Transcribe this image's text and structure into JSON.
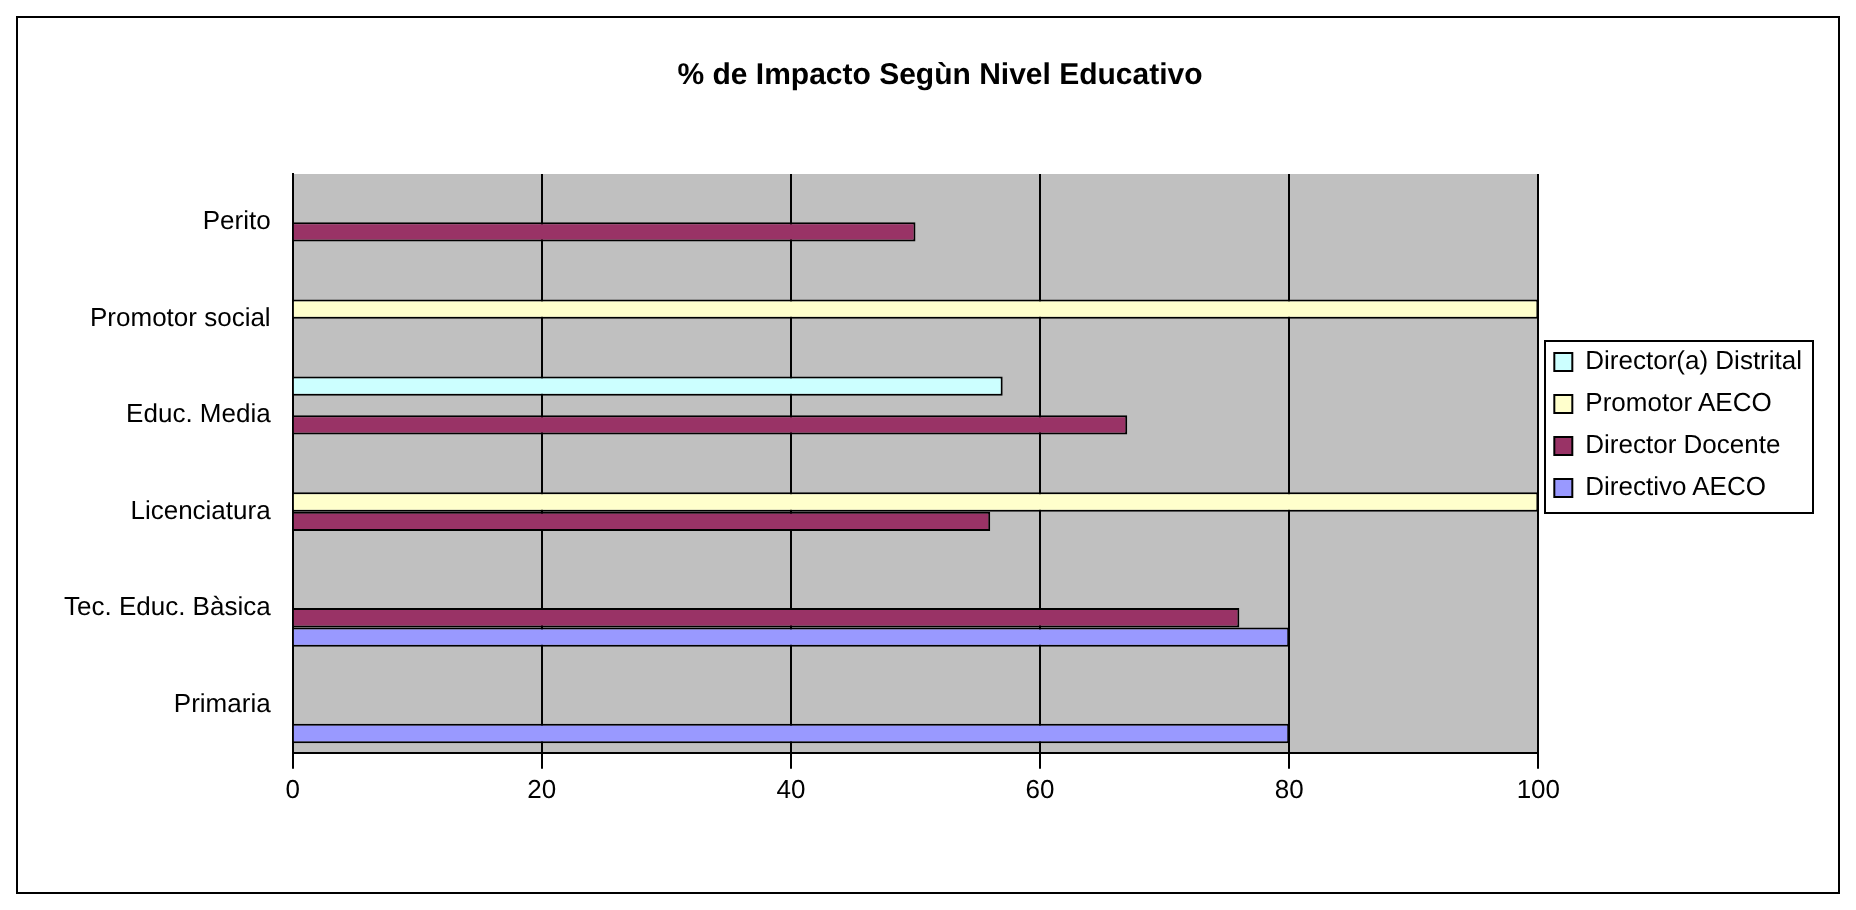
{
  "chart_data": {
    "type": "bar",
    "orientation": "horizontal",
    "title": "% de Impacto Segùn Nivel Educativo",
    "categories": [
      "Perito",
      "Promotor social",
      "Educ. Media",
      "Licenciatura",
      "Tec. Educ. Bàsica",
      "Primaria"
    ],
    "series": [
      {
        "name": "Director(a) Distrital",
        "color": "#ccffff",
        "values": [
          null,
          null,
          57,
          null,
          null,
          null
        ]
      },
      {
        "name": "Promotor AECO",
        "color": "#ffffcc",
        "values": [
          null,
          100,
          null,
          100,
          null,
          null
        ]
      },
      {
        "name": "Director Docente",
        "color": "#993366",
        "values": [
          50,
          null,
          67,
          56,
          76,
          null
        ]
      },
      {
        "name": "Directivo AECO",
        "color": "#9999ff",
        "values": [
          null,
          null,
          null,
          null,
          80,
          80
        ]
      }
    ],
    "xlim": [
      0,
      100
    ],
    "xticks": [
      0,
      20,
      40,
      60,
      80,
      100
    ],
    "grid": "x",
    "legend": "right"
  }
}
